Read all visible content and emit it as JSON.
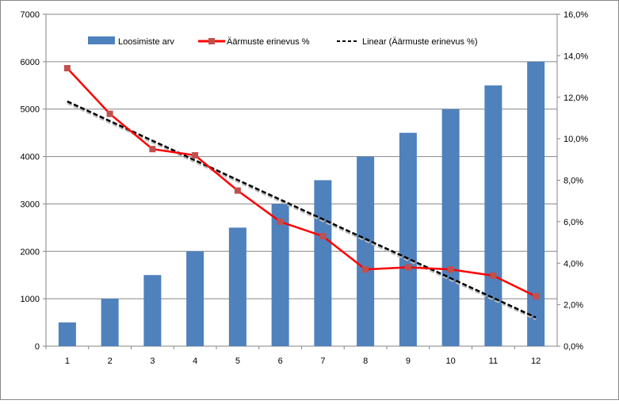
{
  "chart_data": {
    "type": "bar",
    "categories": [
      "1",
      "2",
      "3",
      "4",
      "5",
      "6",
      "7",
      "8",
      "9",
      "10",
      "11",
      "12"
    ],
    "series": [
      {
        "name": "Loosimiste arv",
        "type": "bar",
        "axis": "left",
        "color": "#4f81bd",
        "values": [
          500,
          1000,
          1500,
          2000,
          2500,
          3000,
          3500,
          4000,
          4500,
          5000,
          5500,
          6000
        ]
      },
      {
        "name": "Äärmuste erinevus %",
        "type": "line",
        "axis": "right",
        "color": "#ff0000",
        "marker_color": "#c0504d",
        "values": [
          13.4,
          11.2,
          9.5,
          9.2,
          7.5,
          6.0,
          5.3,
          3.7,
          3.8,
          3.7,
          3.4,
          2.4
        ]
      },
      {
        "name": "Linear (Äärmuste erinevus %)",
        "type": "trendline",
        "axis": "right",
        "color": "#000000"
      }
    ],
    "ylim": [
      0,
      7000
    ],
    "y_ticks": [
      "0",
      "1000",
      "2000",
      "3000",
      "4000",
      "5000",
      "6000",
      "7000"
    ],
    "y2lim": [
      0,
      16
    ],
    "y2_ticks": [
      "0,0%",
      "2,0%",
      "4,0%",
      "6,0%",
      "8,0%",
      "10,0%",
      "12,0%",
      "14,0%",
      "16,0%"
    ],
    "grid": true,
    "legend": "top"
  }
}
